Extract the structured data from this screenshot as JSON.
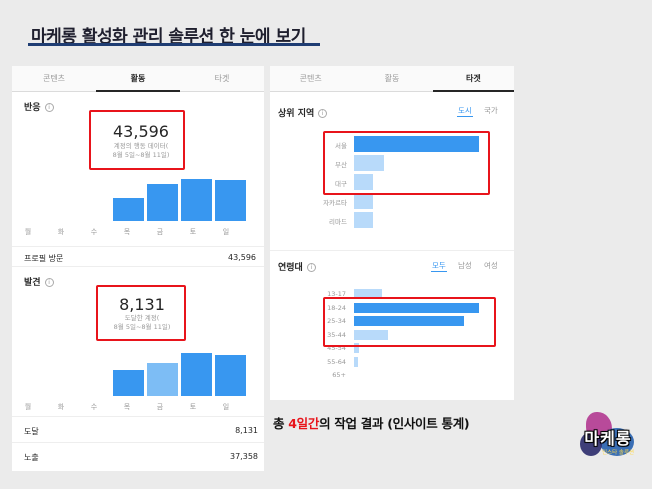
{
  "header": {
    "title": "마케롱 활성화 관리 솔루션 한 눈에 보기"
  },
  "left_panel": {
    "tabs": [
      "콘텐츠",
      "활동",
      "타겟"
    ],
    "active_tab": 1,
    "reach": {
      "title": "반응",
      "info_icon": "info-icon",
      "total": "43,596",
      "sub_line1": "계정의 행동 데이터(",
      "sub_line2": "8월 5일~8월 11일)",
      "days": [
        "월",
        "화",
        "수",
        "목",
        "금",
        "토",
        "일"
      ],
      "bar_levels": [
        0,
        0,
        0,
        0.55,
        0.88,
        1.0,
        0.98
      ],
      "row_label": "프로필 방문",
      "row_value": "43,596"
    },
    "discovery": {
      "title": "발견",
      "info_icon": "info-icon",
      "total": "8,131",
      "sub_line1": "도달한 계정(",
      "sub_line2": "8월 5일~8월 11일)",
      "days": [
        "월",
        "화",
        "수",
        "목",
        "금",
        "토",
        "일"
      ],
      "bar_levels": [
        0,
        0,
        0,
        0.6,
        0.75,
        0.98,
        0.94
      ],
      "rows": [
        {
          "label": "도달",
          "value": "8,131"
        },
        {
          "label": "노출",
          "value": "37,358"
        }
      ]
    }
  },
  "right_panel": {
    "tabs": [
      "콘텐츠",
      "활동",
      "타겟"
    ],
    "active_tab": 2,
    "regions": {
      "title": "상위 지역",
      "info_icon": "info-icon",
      "filters": [
        "도시",
        "국가"
      ],
      "active_filter": 0,
      "labels": [
        "서울",
        "부산",
        "대구",
        "자카르타",
        "리마드"
      ],
      "levels": [
        1.0,
        0.24,
        0.15,
        0.15,
        0.15
      ]
    },
    "age": {
      "title": "연령대",
      "info_icon": "info-icon",
      "filters": [
        "모두",
        "남성",
        "여성"
      ],
      "active_filter": 0,
      "labels": [
        "13-17",
        "18-24",
        "25-34",
        "35-44",
        "45-54",
        "55-64",
        "65+"
      ],
      "levels": [
        0.22,
        1.0,
        0.88,
        0.27,
        0.04,
        0.03,
        0.0
      ]
    }
  },
  "caption": {
    "prefix": "총 ",
    "highlight": "4일간",
    "suffix": "의 작업 결과 (인사이트 통계)"
  },
  "logo": {
    "brand": "마케롱",
    "sub": "인스타 솔루션"
  },
  "colors": {
    "bar_dark": "#3897f0",
    "bar_light": "#7dbdf5",
    "bar_lighter": "#b8dafa",
    "highlight_box": "#e8141b",
    "title_underline": "#1f3d73"
  }
}
